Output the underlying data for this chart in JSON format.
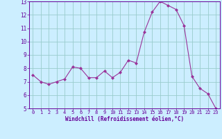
{
  "x": [
    0,
    1,
    2,
    3,
    4,
    5,
    6,
    7,
    8,
    9,
    10,
    11,
    12,
    13,
    14,
    15,
    16,
    17,
    18,
    19,
    20,
    21,
    22,
    23
  ],
  "y": [
    7.5,
    7.0,
    6.8,
    7.0,
    7.2,
    8.1,
    8.0,
    7.3,
    7.3,
    7.8,
    7.3,
    7.7,
    8.6,
    8.4,
    10.7,
    12.2,
    13.0,
    12.7,
    12.4,
    11.2,
    7.4,
    6.5,
    6.1,
    5.0
  ],
  "xlabel": "Windchill (Refroidissement éolien,°C)",
  "ylim": [
    5,
    13
  ],
  "xlim_min": -0.5,
  "xlim_max": 23.5,
  "yticks": [
    5,
    6,
    7,
    8,
    9,
    10,
    11,
    12,
    13
  ],
  "xticks": [
    0,
    1,
    2,
    3,
    4,
    5,
    6,
    7,
    8,
    9,
    10,
    11,
    12,
    13,
    14,
    15,
    16,
    17,
    18,
    19,
    20,
    21,
    22,
    23
  ],
  "line_color": "#993399",
  "marker_color": "#993399",
  "bg_color": "#cceeff",
  "grid_color": "#99cccc",
  "xlabel_color": "#660099",
  "tick_color": "#660099"
}
